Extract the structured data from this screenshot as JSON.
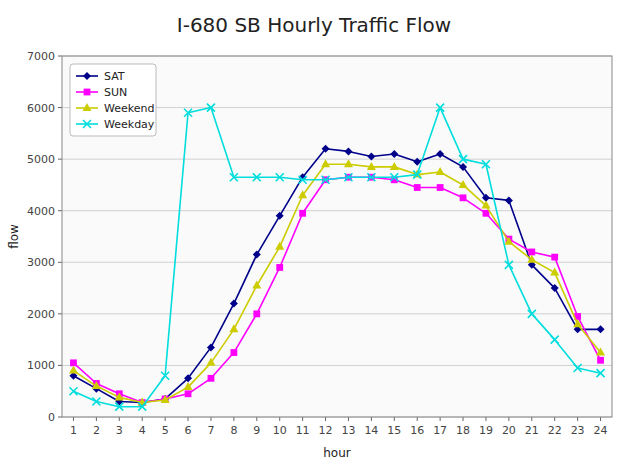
{
  "chart_data": {
    "type": "line",
    "title": "I-680 SB Hourly Traffic Flow",
    "x_label": "hour",
    "y_label": "flow",
    "x": [
      1,
      2,
      3,
      4,
      5,
      6,
      7,
      8,
      9,
      10,
      11,
      12,
      13,
      14,
      15,
      16,
      17,
      18,
      19,
      20,
      21,
      22,
      23,
      24
    ],
    "series": [
      {
        "name": "SAT",
        "color": "#00008B",
        "marker": "diamond",
        "values": [
          800,
          550,
          300,
          280,
          350,
          750,
          1350,
          2200,
          3150,
          3900,
          4650,
          5200,
          5150,
          5050,
          5100,
          4950,
          5100,
          4850,
          4250,
          4200,
          2950,
          2500,
          1700,
          1700
        ]
      },
      {
        "name": "SUN",
        "color": "#FF00FF",
        "marker": "square",
        "values": [
          1050,
          650,
          450,
          280,
          350,
          450,
          750,
          1250,
          2000,
          2900,
          3950,
          4600,
          4650,
          4650,
          4600,
          4450,
          4450,
          4250,
          3950,
          3450,
          3200,
          3100,
          1950,
          1100
        ]
      },
      {
        "name": "Weekend",
        "color": "#CCCC00",
        "marker": "triangle",
        "values": [
          900,
          600,
          380,
          280,
          330,
          580,
          1050,
          1700,
          2550,
          3300,
          4300,
          4900,
          4900,
          4850,
          4850,
          4700,
          4750,
          4500,
          4100,
          3400,
          3050,
          2800,
          1800,
          1250
        ]
      },
      {
        "name": "Weekday",
        "color": "#00DDDD",
        "marker": "x",
        "values": [
          500,
          300,
          200,
          200,
          800,
          5900,
          6000,
          4650,
          4650,
          4650,
          4600,
          4600,
          4650,
          4650,
          4650,
          4700,
          6000,
          5000,
          4900,
          2950,
          2000,
          1500,
          950,
          850
        ]
      }
    ],
    "xlim": [
      0.5,
      24.5
    ],
    "xticks": [
      1,
      2,
      3,
      4,
      5,
      6,
      7,
      8,
      9,
      10,
      11,
      12,
      13,
      14,
      15,
      16,
      17,
      18,
      19,
      20,
      21,
      22,
      23,
      24
    ],
    "ylim": [
      0,
      7000
    ],
    "yticks": [
      0,
      1000,
      2000,
      3000,
      4000,
      5000,
      6000,
      7000
    ],
    "grid": true,
    "legend": "upper left"
  }
}
